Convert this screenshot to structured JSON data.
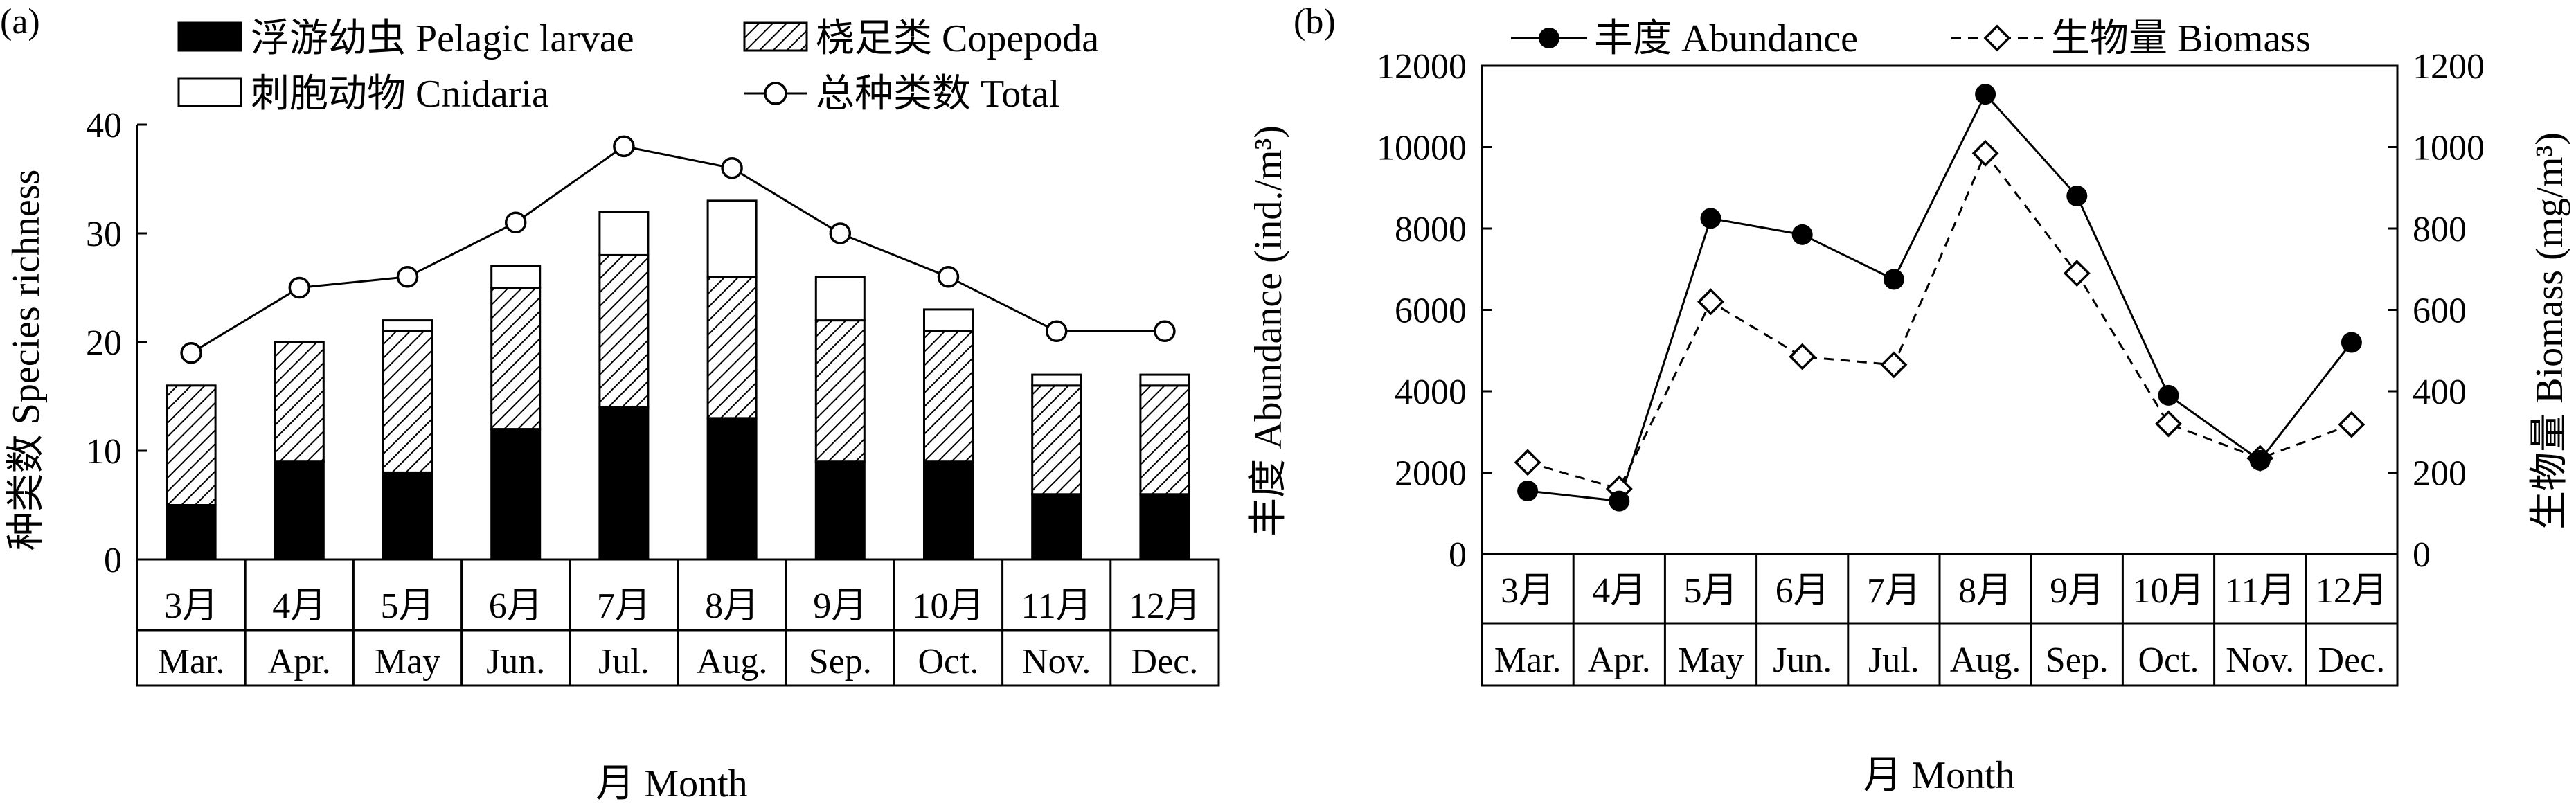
{
  "chart_data": [
    {
      "panel_label": "(a)",
      "type": "bar",
      "stacked": true,
      "categories": [
        "3月",
        "4月",
        "5月",
        "6月",
        "7月",
        "8月",
        "9月",
        "10月",
        "11月",
        "12月"
      ],
      "categories_en": [
        "Mar.",
        "Apr.",
        "May",
        "Jun.",
        "Jul.",
        "Aug.",
        "Sep.",
        "Oct.",
        "Nov.",
        "Dec."
      ],
      "series": [
        {
          "name": "浮游幼虫 Pelagic larvae",
          "kind": "bar",
          "fill": "solid-black",
          "values": [
            5,
            9,
            8,
            12,
            14,
            13,
            9,
            9,
            6,
            6
          ]
        },
        {
          "name": "桡足类 Copepoda",
          "kind": "bar",
          "fill": "hatched",
          "values": [
            11,
            11,
            13,
            13,
            14,
            13,
            13,
            12,
            10,
            10
          ]
        },
        {
          "name": "刺胞动物 Cnidaria",
          "kind": "bar",
          "fill": "white",
          "values": [
            0,
            0,
            1,
            2,
            4,
            7,
            4,
            2,
            1,
            1
          ]
        },
        {
          "name": "总种类数 Total",
          "kind": "line",
          "marker": "open-circle",
          "values": [
            19,
            25,
            26,
            31,
            38,
            36,
            30,
            26,
            21,
            21
          ]
        }
      ],
      "xlabel": "月 Month",
      "ylabel": "种类数 Species richness",
      "ylim": [
        0,
        40
      ],
      "yticks": [
        0,
        10,
        20,
        30,
        40
      ],
      "grid": false,
      "legend_position": "top"
    },
    {
      "panel_label": "(b)",
      "type": "line",
      "categories": [
        "3月",
        "4月",
        "5月",
        "6月",
        "7月",
        "8月",
        "9月",
        "10月",
        "11月",
        "12月"
      ],
      "categories_en": [
        "Mar.",
        "Apr.",
        "May",
        "Jun.",
        "Jul.",
        "Aug.",
        "Sep.",
        "Oct.",
        "Nov.",
        "Dec."
      ],
      "series": [
        {
          "name": "丰度 Abundance",
          "axis": "left",
          "style": "solid",
          "marker": "filled-circle",
          "values": [
            1550,
            1300,
            8250,
            7850,
            6750,
            11300,
            8800,
            3900,
            2300,
            5200
          ]
        },
        {
          "name": "生物量 Biomass",
          "axis": "right",
          "style": "dashed",
          "marker": "open-diamond",
          "values": [
            225,
            160,
            620,
            485,
            465,
            985,
            690,
            320,
            235,
            318
          ]
        }
      ],
      "xlabel": "月 Month",
      "ylabel_left": "丰度 Abundance (ind./m³)",
      "ylabel_right": "生物量 Biomass (mg/m³)",
      "ylim_left": [
        0,
        12000
      ],
      "ylim_right": [
        0,
        1200
      ],
      "yticks_left": [
        0,
        2000,
        4000,
        6000,
        8000,
        10000,
        12000
      ],
      "yticks_right": [
        0,
        200,
        400,
        600,
        800,
        1000,
        1200
      ],
      "grid": false,
      "legend_position": "top"
    }
  ]
}
